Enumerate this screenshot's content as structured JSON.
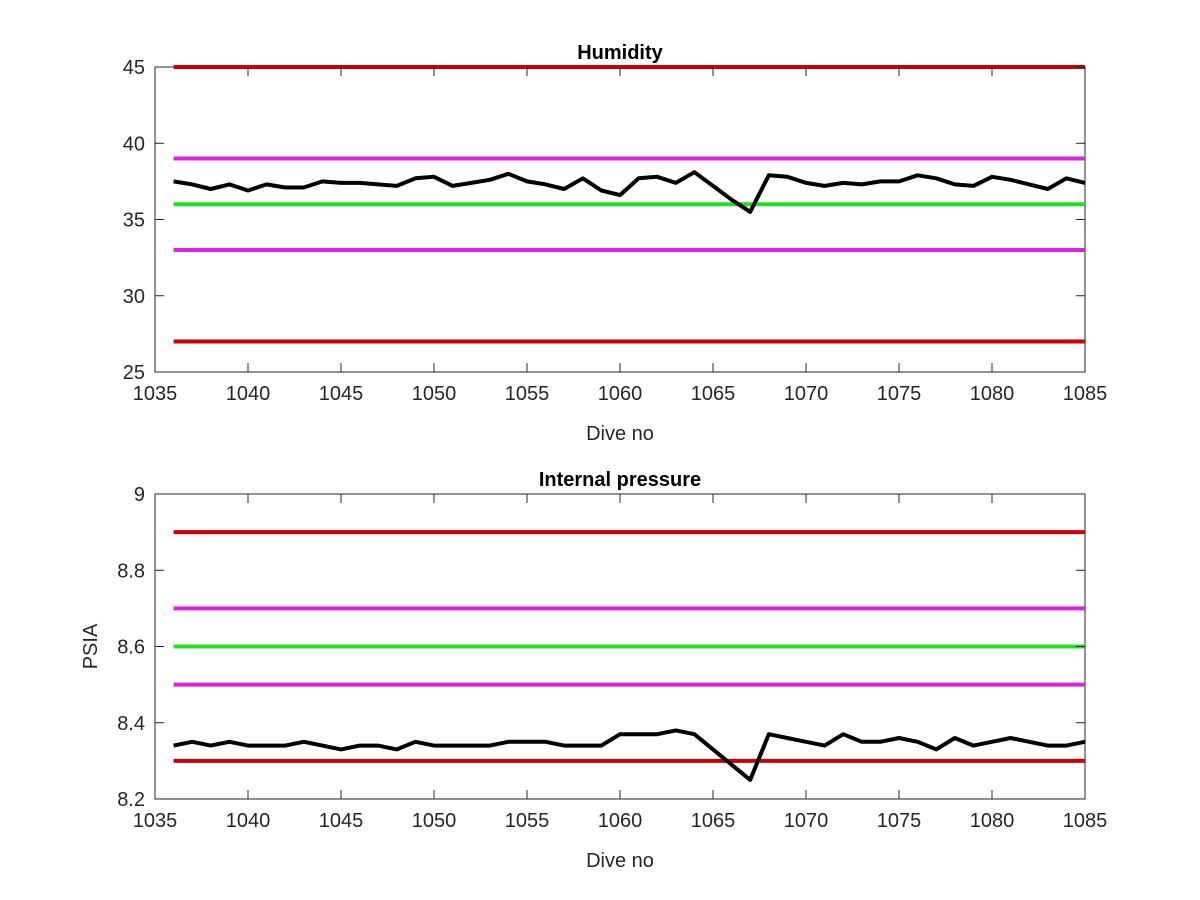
{
  "chart_data": [
    {
      "type": "line",
      "title": "Humidity",
      "xlabel": "Dive no",
      "ylabel": "",
      "xlim": [
        1035,
        1085
      ],
      "ylim": [
        25,
        45
      ],
      "xticks": [
        "1035",
        "1040",
        "1045",
        "1050",
        "1055",
        "1060",
        "1065",
        "1070",
        "1075",
        "1080",
        "1085"
      ],
      "yticks": [
        "25",
        "30",
        "35",
        "40",
        "45"
      ],
      "reference_lines": [
        {
          "y": 45,
          "color": "#cc0000"
        },
        {
          "y": 39,
          "color": "#e020e0"
        },
        {
          "y": 36,
          "color": "#20e020"
        },
        {
          "y": 33,
          "color": "#e020e0"
        },
        {
          "y": 27,
          "color": "#cc0000"
        }
      ],
      "series": [
        {
          "color": "#000000",
          "x": [
            1036,
            1037,
            1038,
            1039,
            1040,
            1041,
            1042,
            1043,
            1044,
            1045,
            1046,
            1047,
            1048,
            1049,
            1050,
            1051,
            1052,
            1053,
            1054,
            1055,
            1056,
            1057,
            1058,
            1059,
            1060,
            1061,
            1062,
            1063,
            1064,
            1065,
            1066,
            1067,
            1068,
            1069,
            1070,
            1071,
            1072,
            1073,
            1074,
            1075,
            1076,
            1077,
            1078,
            1079,
            1080,
            1081,
            1082,
            1083,
            1084,
            1085
          ],
          "y": [
            37.5,
            37.3,
            37.0,
            37.3,
            36.9,
            37.3,
            37.1,
            37.1,
            37.5,
            37.4,
            37.4,
            37.3,
            37.2,
            37.7,
            37.8,
            37.2,
            37.4,
            37.6,
            38.0,
            37.5,
            37.3,
            37.0,
            37.7,
            36.9,
            36.6,
            37.7,
            37.8,
            37.4,
            38.1,
            37.2,
            36.3,
            35.5,
            37.9,
            37.8,
            37.4,
            37.2,
            37.4,
            37.3,
            37.5,
            37.5,
            37.9,
            37.7,
            37.3,
            37.2,
            37.8,
            37.6,
            37.3,
            37.0,
            37.7,
            37.4
          ]
        }
      ]
    },
    {
      "type": "line",
      "title": "Internal pressure",
      "xlabel": "Dive no",
      "ylabel": "PSIA",
      "xlim": [
        1035,
        1085
      ],
      "ylim": [
        8.2,
        9
      ],
      "xticks": [
        "1035",
        "1040",
        "1045",
        "1050",
        "1055",
        "1060",
        "1065",
        "1070",
        "1075",
        "1080",
        "1085"
      ],
      "yticks": [
        "8.2",
        "8.4",
        "8.6",
        "8.8",
        "9"
      ],
      "reference_lines": [
        {
          "y": 8.9,
          "color": "#cc0000"
        },
        {
          "y": 8.7,
          "color": "#e020e0"
        },
        {
          "y": 8.6,
          "color": "#20e020"
        },
        {
          "y": 8.5,
          "color": "#e020e0"
        },
        {
          "y": 8.3,
          "color": "#cc0000"
        }
      ],
      "series": [
        {
          "color": "#000000",
          "x": [
            1036,
            1037,
            1038,
            1039,
            1040,
            1041,
            1042,
            1043,
            1044,
            1045,
            1046,
            1047,
            1048,
            1049,
            1050,
            1051,
            1052,
            1053,
            1054,
            1055,
            1056,
            1057,
            1058,
            1059,
            1060,
            1061,
            1062,
            1063,
            1064,
            1065,
            1066,
            1067,
            1068,
            1069,
            1070,
            1071,
            1072,
            1073,
            1074,
            1075,
            1076,
            1077,
            1078,
            1079,
            1080,
            1081,
            1082,
            1083,
            1084,
            1085
          ],
          "y": [
            8.34,
            8.35,
            8.34,
            8.35,
            8.34,
            8.34,
            8.34,
            8.35,
            8.34,
            8.33,
            8.34,
            8.34,
            8.33,
            8.35,
            8.34,
            8.34,
            8.34,
            8.34,
            8.35,
            8.35,
            8.35,
            8.34,
            8.34,
            8.34,
            8.37,
            8.37,
            8.37,
            8.38,
            8.37,
            8.33,
            8.29,
            8.25,
            8.37,
            8.36,
            8.35,
            8.34,
            8.37,
            8.35,
            8.35,
            8.36,
            8.35,
            8.33,
            8.36,
            8.34,
            8.35,
            8.36,
            8.35,
            8.34,
            8.34,
            8.35
          ]
        }
      ]
    }
  ]
}
